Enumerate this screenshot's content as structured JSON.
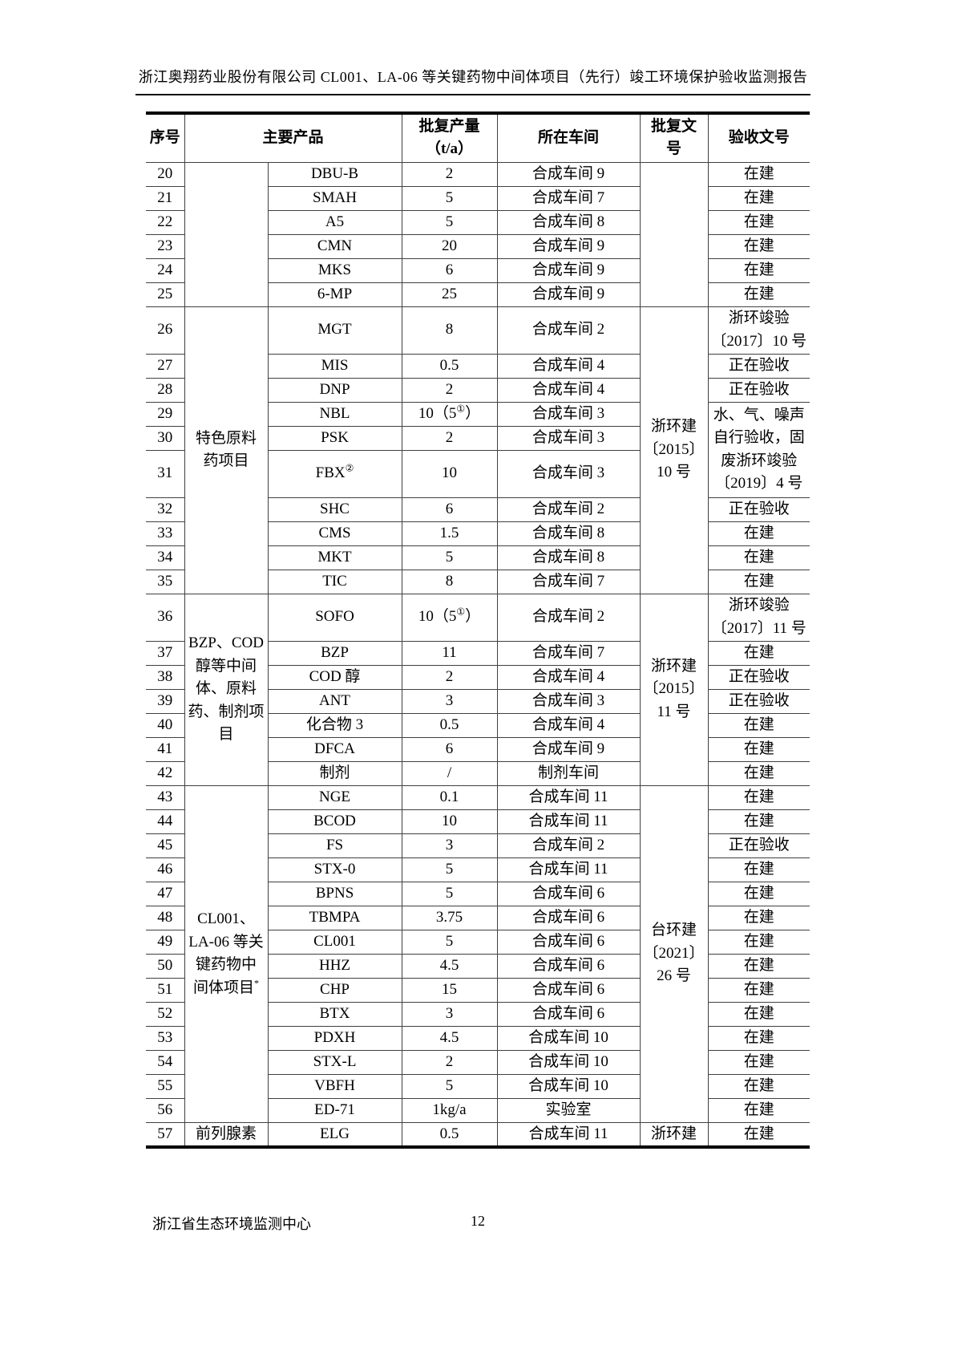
{
  "header": {
    "title": "浙江奥翔药业股份有限公司 CL001、LA-06 等关键药物中间体项目（先行）竣工环境保护验收监测报告"
  },
  "table": {
    "header": {
      "index": "序号",
      "product": "主要产品",
      "capacity": "批复产量\n（t/a）",
      "workshop": "所在车间",
      "approval": "批复文\n号",
      "acceptance": "验收文号"
    },
    "rows": [
      {
        "h": "r30",
        "cells": [
          {
            "c": "index",
            "t": "20"
          },
          {
            "c": "group",
            "t": "",
            "rs": 6
          },
          {
            "c": "product",
            "t": "DBU-B"
          },
          {
            "c": "capacity",
            "t": "2"
          },
          {
            "c": "workshop",
            "t": "合成车间 9"
          },
          {
            "c": "approval",
            "t": "",
            "rs": 6
          },
          {
            "c": "acceptance",
            "t": "在建"
          }
        ]
      },
      {
        "h": "r30",
        "cells": [
          {
            "c": "index",
            "t": "21"
          },
          {
            "c": "product",
            "t": "SMAH"
          },
          {
            "c": "capacity",
            "t": "5"
          },
          {
            "c": "workshop",
            "t": "合成车间 7"
          },
          {
            "c": "acceptance",
            "t": "在建"
          }
        ]
      },
      {
        "h": "r30",
        "cells": [
          {
            "c": "index",
            "t": "22"
          },
          {
            "c": "product",
            "t": "A5"
          },
          {
            "c": "capacity",
            "t": "5"
          },
          {
            "c": "workshop",
            "t": "合成车间 8"
          },
          {
            "c": "acceptance",
            "t": "在建"
          }
        ]
      },
      {
        "h": "r30",
        "cells": [
          {
            "c": "index",
            "t": "23"
          },
          {
            "c": "product",
            "t": "CMN"
          },
          {
            "c": "capacity",
            "t": "20"
          },
          {
            "c": "workshop",
            "t": "合成车间 9"
          },
          {
            "c": "acceptance",
            "t": "在建"
          }
        ]
      },
      {
        "h": "r30",
        "cells": [
          {
            "c": "index",
            "t": "24"
          },
          {
            "c": "product",
            "t": "MKS"
          },
          {
            "c": "capacity",
            "t": "6"
          },
          {
            "c": "workshop",
            "t": "合成车间 9"
          },
          {
            "c": "acceptance",
            "t": "在建"
          }
        ]
      },
      {
        "h": "r30",
        "cells": [
          {
            "c": "index",
            "t": "25"
          },
          {
            "c": "product",
            "t": "6-MP"
          },
          {
            "c": "capacity",
            "t": "25"
          },
          {
            "c": "workshop",
            "t": "合成车间 9"
          },
          {
            "c": "acceptance",
            "t": "在建"
          }
        ]
      },
      {
        "h": "r59",
        "cells": [
          {
            "c": "index",
            "t": "26"
          },
          {
            "c": "group",
            "t": "特色原料\n药项目",
            "rs": 10
          },
          {
            "c": "product",
            "t": "MGT"
          },
          {
            "c": "capacity",
            "t": "8"
          },
          {
            "c": "workshop",
            "t": "合成车间 2"
          },
          {
            "c": "approval",
            "t": "浙环建\n〔2015〕\n10 号",
            "rs": 10
          },
          {
            "c": "acceptance",
            "t": "浙环竣验\n〔2017〕10 号"
          }
        ]
      },
      {
        "h": "r30",
        "cells": [
          {
            "c": "index",
            "t": "27"
          },
          {
            "c": "product",
            "t": "MIS"
          },
          {
            "c": "capacity",
            "t": "0.5"
          },
          {
            "c": "workshop",
            "t": "合成车间 4"
          },
          {
            "c": "acceptance",
            "t": "正在验收"
          }
        ]
      },
      {
        "h": "r30",
        "cells": [
          {
            "c": "index",
            "t": "28"
          },
          {
            "c": "product",
            "t": "DNP"
          },
          {
            "c": "capacity",
            "t": "2"
          },
          {
            "c": "workshop",
            "t": "合成车间 4"
          },
          {
            "c": "acceptance",
            "t": "正在验收"
          }
        ]
      },
      {
        "h": "r30",
        "cells": [
          {
            "c": "index",
            "t": "29"
          },
          {
            "c": "product",
            "t": "NBL"
          },
          {
            "c": "capacity",
            "t": "10（5^{①}）"
          },
          {
            "c": "workshop",
            "t": "合成车间 3"
          },
          {
            "c": "acceptance",
            "t": "水、气、噪声\n自行验收，固\n废浙环竣验\n〔2019〕4 号",
            "rs": 3
          }
        ]
      },
      {
        "h": "r30",
        "cells": [
          {
            "c": "index",
            "t": "30"
          },
          {
            "c": "product",
            "t": "PSK"
          },
          {
            "c": "capacity",
            "t": "2"
          },
          {
            "c": "workshop",
            "t": "合成车间 3"
          }
        ]
      },
      {
        "h": "r59",
        "cells": [
          {
            "c": "index",
            "t": "31"
          },
          {
            "c": "product",
            "t": "FBX^{②}"
          },
          {
            "c": "capacity",
            "t": "10"
          },
          {
            "c": "workshop",
            "t": "合成车间 3"
          }
        ]
      },
      {
        "h": "r30",
        "cells": [
          {
            "c": "index",
            "t": "32"
          },
          {
            "c": "product",
            "t": "SHC"
          },
          {
            "c": "capacity",
            "t": "6"
          },
          {
            "c": "workshop",
            "t": "合成车间 2"
          },
          {
            "c": "acceptance",
            "t": "正在验收"
          }
        ]
      },
      {
        "h": "r30",
        "cells": [
          {
            "c": "index",
            "t": "33"
          },
          {
            "c": "product",
            "t": "CMS"
          },
          {
            "c": "capacity",
            "t": "1.5"
          },
          {
            "c": "workshop",
            "t": "合成车间 8"
          },
          {
            "c": "acceptance",
            "t": "在建"
          }
        ]
      },
      {
        "h": "r30",
        "cells": [
          {
            "c": "index",
            "t": "34"
          },
          {
            "c": "product",
            "t": "MKT"
          },
          {
            "c": "capacity",
            "t": "5"
          },
          {
            "c": "workshop",
            "t": "合成车间 8"
          },
          {
            "c": "acceptance",
            "t": "在建"
          }
        ]
      },
      {
        "h": "r30",
        "cells": [
          {
            "c": "index",
            "t": "35"
          },
          {
            "c": "product",
            "t": "TIC"
          },
          {
            "c": "capacity",
            "t": "8"
          },
          {
            "c": "workshop",
            "t": "合成车间 7"
          },
          {
            "c": "acceptance",
            "t": "在建"
          }
        ]
      },
      {
        "h": "r59",
        "cells": [
          {
            "c": "index",
            "t": "36"
          },
          {
            "c": "group",
            "t": "BZP、COD\n醇等中间\n体、原料\n药、制剂项\n目",
            "rs": 7
          },
          {
            "c": "product",
            "t": "SOFO"
          },
          {
            "c": "capacity",
            "t": "10（5^{①}）"
          },
          {
            "c": "workshop",
            "t": "合成车间 2"
          },
          {
            "c": "approval",
            "t": "浙环建\n〔2015〕\n11 号",
            "rs": 7
          },
          {
            "c": "acceptance",
            "t": "浙环竣验\n〔2017〕11 号"
          }
        ]
      },
      {
        "h": "r30",
        "cells": [
          {
            "c": "index",
            "t": "37"
          },
          {
            "c": "product",
            "t": "BZP"
          },
          {
            "c": "capacity",
            "t": "11"
          },
          {
            "c": "workshop",
            "t": "合成车间 7"
          },
          {
            "c": "acceptance",
            "t": "在建"
          }
        ]
      },
      {
        "h": "r30",
        "cells": [
          {
            "c": "index",
            "t": "38"
          },
          {
            "c": "product",
            "t": "COD 醇"
          },
          {
            "c": "capacity",
            "t": "2"
          },
          {
            "c": "workshop",
            "t": "合成车间 4"
          },
          {
            "c": "acceptance",
            "t": "正在验收"
          }
        ]
      },
      {
        "h": "r30",
        "cells": [
          {
            "c": "index",
            "t": "39"
          },
          {
            "c": "product",
            "t": "ANT"
          },
          {
            "c": "capacity",
            "t": "3"
          },
          {
            "c": "workshop",
            "t": "合成车间 3"
          },
          {
            "c": "acceptance",
            "t": "正在验收"
          }
        ]
      },
      {
        "h": "r30",
        "cells": [
          {
            "c": "index",
            "t": "40"
          },
          {
            "c": "product",
            "t": "化合物 3"
          },
          {
            "c": "capacity",
            "t": "0.5"
          },
          {
            "c": "workshop",
            "t": "合成车间 4"
          },
          {
            "c": "acceptance",
            "t": "在建"
          }
        ]
      },
      {
        "h": "r30",
        "cells": [
          {
            "c": "index",
            "t": "41"
          },
          {
            "c": "product",
            "t": "DFCA"
          },
          {
            "c": "capacity",
            "t": "6"
          },
          {
            "c": "workshop",
            "t": "合成车间 9"
          },
          {
            "c": "acceptance",
            "t": "在建"
          }
        ]
      },
      {
        "h": "r30",
        "cells": [
          {
            "c": "index",
            "t": "42"
          },
          {
            "c": "product",
            "t": "制剂"
          },
          {
            "c": "capacity",
            "t": "/"
          },
          {
            "c": "workshop",
            "t": "制剂车间"
          },
          {
            "c": "acceptance",
            "t": "在建"
          }
        ]
      },
      {
        "h": "r30",
        "cells": [
          {
            "c": "index",
            "t": "43"
          },
          {
            "c": "group",
            "t": "CL001、\nLA-06 等关\n键药物中\n间体项目^{*}",
            "rs": 14
          },
          {
            "c": "product",
            "t": "NGE"
          },
          {
            "c": "capacity",
            "t": "0.1"
          },
          {
            "c": "workshop",
            "t": "合成车间 11"
          },
          {
            "c": "approval",
            "t": "台环建\n〔2021〕\n26 号",
            "rs": 14
          },
          {
            "c": "acceptance",
            "t": "在建"
          }
        ]
      },
      {
        "h": "r30",
        "cells": [
          {
            "c": "index",
            "t": "44"
          },
          {
            "c": "product",
            "t": "BCOD"
          },
          {
            "c": "capacity",
            "t": "10"
          },
          {
            "c": "workshop",
            "t": "合成车间 11"
          },
          {
            "c": "acceptance",
            "t": "在建"
          }
        ]
      },
      {
        "h": "r30",
        "cells": [
          {
            "c": "index",
            "t": "45"
          },
          {
            "c": "product",
            "t": "FS"
          },
          {
            "c": "capacity",
            "t": "3"
          },
          {
            "c": "workshop",
            "t": "合成车间 2"
          },
          {
            "c": "acceptance",
            "t": "正在验收"
          }
        ]
      },
      {
        "h": "r30",
        "cells": [
          {
            "c": "index",
            "t": "46"
          },
          {
            "c": "product",
            "t": "STX-0"
          },
          {
            "c": "capacity",
            "t": "5"
          },
          {
            "c": "workshop",
            "t": "合成车间 11"
          },
          {
            "c": "acceptance",
            "t": "在建"
          }
        ]
      },
      {
        "h": "r30",
        "cells": [
          {
            "c": "index",
            "t": "47"
          },
          {
            "c": "product",
            "t": "BPNS"
          },
          {
            "c": "capacity",
            "t": "5"
          },
          {
            "c": "workshop",
            "t": "合成车间 6"
          },
          {
            "c": "acceptance",
            "t": "在建"
          }
        ]
      },
      {
        "h": "r30",
        "cells": [
          {
            "c": "index",
            "t": "48"
          },
          {
            "c": "product",
            "t": "TBMPA"
          },
          {
            "c": "capacity",
            "t": "3.75"
          },
          {
            "c": "workshop",
            "t": "合成车间 6"
          },
          {
            "c": "acceptance",
            "t": "在建"
          }
        ]
      },
      {
        "h": "r30",
        "cells": [
          {
            "c": "index",
            "t": "49"
          },
          {
            "c": "product",
            "t": "CL001"
          },
          {
            "c": "capacity",
            "t": "5"
          },
          {
            "c": "workshop",
            "t": "合成车间 6"
          },
          {
            "c": "acceptance",
            "t": "在建"
          }
        ]
      },
      {
        "h": "r30",
        "cells": [
          {
            "c": "index",
            "t": "50"
          },
          {
            "c": "product",
            "t": "HHZ"
          },
          {
            "c": "capacity",
            "t": "4.5"
          },
          {
            "c": "workshop",
            "t": "合成车间 6"
          },
          {
            "c": "acceptance",
            "t": "在建"
          }
        ]
      },
      {
        "h": "r30",
        "cells": [
          {
            "c": "index",
            "t": "51"
          },
          {
            "c": "product",
            "t": "CHP"
          },
          {
            "c": "capacity",
            "t": "15"
          },
          {
            "c": "workshop",
            "t": "合成车间 6"
          },
          {
            "c": "acceptance",
            "t": "在建"
          }
        ]
      },
      {
        "h": "r30",
        "cells": [
          {
            "c": "index",
            "t": "52"
          },
          {
            "c": "product",
            "t": "BTX"
          },
          {
            "c": "capacity",
            "t": "3"
          },
          {
            "c": "workshop",
            "t": "合成车间 6"
          },
          {
            "c": "acceptance",
            "t": "在建"
          }
        ]
      },
      {
        "h": "r30",
        "cells": [
          {
            "c": "index",
            "t": "53"
          },
          {
            "c": "product",
            "t": "PDXH"
          },
          {
            "c": "capacity",
            "t": "4.5"
          },
          {
            "c": "workshop",
            "t": "合成车间 10"
          },
          {
            "c": "acceptance",
            "t": "在建"
          }
        ]
      },
      {
        "h": "r30",
        "cells": [
          {
            "c": "index",
            "t": "54"
          },
          {
            "c": "product",
            "t": "STX-L"
          },
          {
            "c": "capacity",
            "t": "2"
          },
          {
            "c": "workshop",
            "t": "合成车间 10"
          },
          {
            "c": "acceptance",
            "t": "在建"
          }
        ]
      },
      {
        "h": "r30",
        "cells": [
          {
            "c": "index",
            "t": "55"
          },
          {
            "c": "product",
            "t": "VBFH"
          },
          {
            "c": "capacity",
            "t": "5"
          },
          {
            "c": "workshop",
            "t": "合成车间 10"
          },
          {
            "c": "acceptance",
            "t": "在建"
          }
        ]
      },
      {
        "h": "r30",
        "cells": [
          {
            "c": "index",
            "t": "56"
          },
          {
            "c": "product",
            "t": "ED-71"
          },
          {
            "c": "capacity",
            "t": "1kg/a"
          },
          {
            "c": "workshop",
            "t": "实验室"
          },
          {
            "c": "acceptance",
            "t": "在建"
          }
        ]
      },
      {
        "h": "r30",
        "cells": [
          {
            "c": "index",
            "t": "57"
          },
          {
            "c": "group",
            "t": "前列腺素"
          },
          {
            "c": "product",
            "t": "ELG"
          },
          {
            "c": "capacity",
            "t": "0.5"
          },
          {
            "c": "workshop",
            "t": "合成车间 11"
          },
          {
            "c": "approval",
            "t": "浙环建"
          },
          {
            "c": "acceptance",
            "t": "在建"
          }
        ]
      }
    ]
  },
  "footer": {
    "org": "浙江省生态环境监测中心",
    "page_number": "12"
  }
}
